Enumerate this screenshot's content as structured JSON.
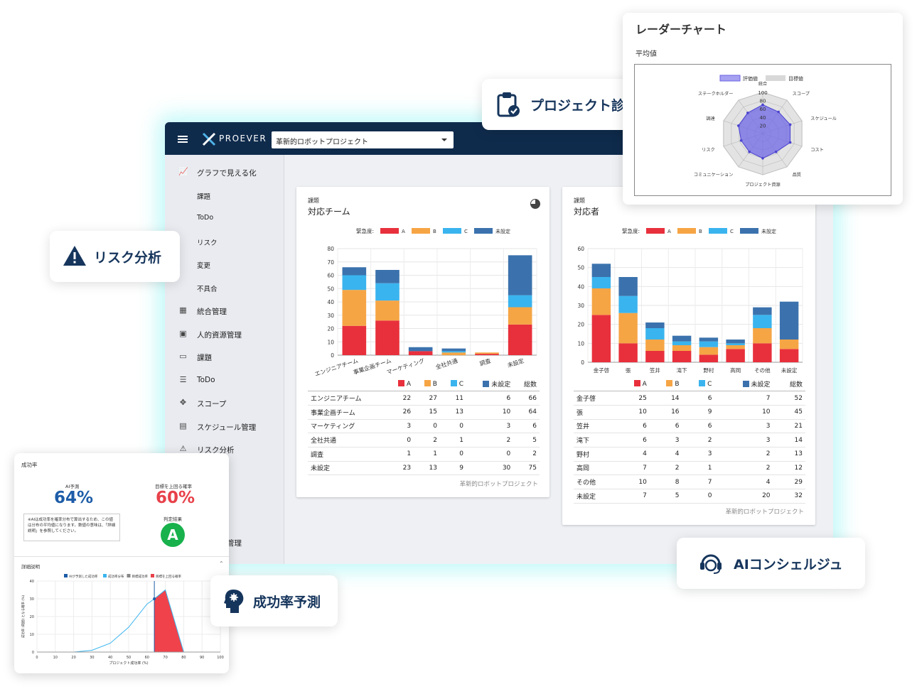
{
  "app": {
    "logo_text": "PROEVER",
    "project_select": "革新的ロボットプロジェクト"
  },
  "sidebar": {
    "items": [
      {
        "label": "グラフで見える化",
        "icon": "chart-icon",
        "sub": false
      },
      {
        "label": "課題",
        "icon": "",
        "sub": true
      },
      {
        "label": "ToDo",
        "icon": "",
        "sub": true
      },
      {
        "label": "リスク",
        "icon": "",
        "sub": true
      },
      {
        "label": "変更",
        "icon": "",
        "sub": true
      },
      {
        "label": "不具合",
        "icon": "",
        "sub": true
      },
      {
        "label": "統合管理",
        "icon": "building-icon",
        "sub": false
      },
      {
        "label": "人的資源管理",
        "icon": "person-badge-icon",
        "sub": false
      },
      {
        "label": "課題",
        "icon": "inbox-icon",
        "sub": false
      },
      {
        "label": "ToDo",
        "icon": "list-icon",
        "sub": false
      },
      {
        "label": "スコープ",
        "icon": "move-icon",
        "sub": false
      },
      {
        "label": "スケジュール管理",
        "icon": "calendar-icon",
        "sub": false
      },
      {
        "label": "リスク分析",
        "icon": "warning-icon",
        "sub": false
      },
      {
        "label": "理",
        "icon": "",
        "sub": false
      },
      {
        "label": "ホルダー管理",
        "icon": "",
        "sub": false
      }
    ]
  },
  "team_card": {
    "category": "課題",
    "title": "対応チーム",
    "legend_prefix": "緊急度:",
    "footer": "革新的ロボットプロジェクト",
    "table_headers": [
      "A",
      "B",
      "C",
      "未設定",
      "総数"
    ],
    "rows": [
      {
        "name": "エンジニアチーム",
        "values": [
          22,
          27,
          11,
          6
        ],
        "total": 66
      },
      {
        "name": "事業企画チーム",
        "values": [
          26,
          15,
          13,
          10
        ],
        "total": 64
      },
      {
        "name": "マーケティング",
        "values": [
          3,
          0,
          0,
          3
        ],
        "total": 6
      },
      {
        "name": "全社共通",
        "values": [
          0,
          2,
          1,
          2
        ],
        "total": 5
      },
      {
        "name": "調査",
        "values": [
          1,
          1,
          0,
          0
        ],
        "total": 2
      },
      {
        "name": "未設定",
        "values": [
          23,
          13,
          9,
          30
        ],
        "total": 75
      }
    ]
  },
  "person_card": {
    "category": "課題",
    "title": "対応者",
    "legend_prefix": "緊急度:",
    "footer": "革新的ロボットプロジェクト",
    "table_headers": [
      "A",
      "B",
      "C",
      "未設定",
      "総数"
    ],
    "rows": [
      {
        "name": "金子啓",
        "values": [
          25,
          14,
          6,
          7
        ],
        "total": 52
      },
      {
        "name": "張",
        "values": [
          10,
          16,
          9,
          10
        ],
        "total": 45
      },
      {
        "name": "笠井",
        "values": [
          6,
          6,
          6,
          3
        ],
        "total": 21
      },
      {
        "name": "滝下",
        "values": [
          6,
          3,
          2,
          3
        ],
        "total": 14
      },
      {
        "name": "野村",
        "values": [
          4,
          4,
          3,
          2
        ],
        "total": 13
      },
      {
        "name": "高岡",
        "values": [
          7,
          2,
          1,
          2
        ],
        "total": 12
      },
      {
        "name": "その他",
        "values": [
          10,
          8,
          7,
          4
        ],
        "total": 29
      },
      {
        "name": "未設定",
        "values": [
          7,
          5,
          0,
          20
        ],
        "total": 32
      }
    ]
  },
  "chart_data": [
    {
      "type": "bar",
      "stacked": true,
      "title": "対応チーム",
      "categories": [
        "エンジニアチーム",
        "事業企画チーム",
        "マーケティング",
        "全社共通",
        "調査",
        "未設定"
      ],
      "series": [
        {
          "name": "A",
          "values": [
            22,
            26,
            3,
            0,
            1,
            23
          ]
        },
        {
          "name": "B",
          "values": [
            27,
            15,
            0,
            2,
            1,
            13
          ]
        },
        {
          "name": "C",
          "values": [
            11,
            13,
            0,
            1,
            0,
            9
          ]
        },
        {
          "name": "未設定",
          "values": [
            6,
            10,
            3,
            2,
            0,
            30
          ]
        }
      ],
      "yticks": [
        0,
        10,
        20,
        30,
        40,
        50,
        60,
        70,
        80
      ],
      "ylim": [
        0,
        80
      ],
      "legend": "top",
      "grid": true
    },
    {
      "type": "bar",
      "stacked": true,
      "title": "対応者",
      "categories": [
        "金子啓",
        "張",
        "笠井",
        "滝下",
        "野村",
        "高岡",
        "その他",
        "未設定"
      ],
      "series": [
        {
          "name": "A",
          "values": [
            25,
            10,
            6,
            6,
            4,
            7,
            10,
            7
          ]
        },
        {
          "name": "B",
          "values": [
            14,
            16,
            6,
            3,
            4,
            2,
            8,
            5
          ]
        },
        {
          "name": "C",
          "values": [
            6,
            9,
            6,
            2,
            3,
            1,
            7,
            0
          ]
        },
        {
          "name": "未設定",
          "values": [
            7,
            10,
            3,
            3,
            2,
            2,
            4,
            20
          ]
        }
      ],
      "yticks": [
        0,
        10,
        20,
        30,
        40,
        50,
        60
      ],
      "ylim": [
        0,
        60
      ],
      "legend": "top",
      "grid": true
    },
    {
      "type": "radar",
      "title": "レーダーチャート",
      "subtitle": "平均値",
      "axes": [
        "統合",
        "スコープ",
        "スケジュール",
        "コスト",
        "品質",
        "プロジェクト資源",
        "コミュニケーション",
        "リスク",
        "調達",
        "ステークホルダー"
      ],
      "series": [
        {
          "name": "評価値",
          "values": [
            70,
            65,
            70,
            70,
            55,
            60,
            55,
            55,
            62,
            62
          ]
        },
        {
          "name": "目標値",
          "values": [
            100,
            100,
            100,
            100,
            100,
            100,
            100,
            100,
            100,
            100
          ]
        }
      ],
      "rticks": [
        20,
        40,
        60,
        80,
        100
      ],
      "rlim": [
        0,
        100
      ],
      "legend": "top"
    },
    {
      "type": "area",
      "title": "詳細説明",
      "xlabel": "プロジェクト成功率 (%)",
      "ylabel": "成功率 (範囲) となる確率 (%)",
      "x": [
        0,
        10,
        20,
        30,
        40,
        50,
        60,
        64,
        70,
        80
      ],
      "y": [
        0,
        0,
        0,
        1,
        5,
        14,
        27,
        30,
        35,
        0
      ],
      "highlight_from_x": 64,
      "xticks": [
        0,
        10,
        20,
        30,
        40,
        50,
        60,
        70,
        80,
        90,
        100
      ],
      "yticks": [
        0,
        10,
        20,
        30,
        40
      ],
      "xlim": [
        0,
        100
      ],
      "ylim": [
        0,
        40
      ],
      "legend_items": [
        "AIが予測した成功率",
        "成功率分布",
        "目標成功率",
        "目標を上回る確率"
      ],
      "grid": true
    }
  ],
  "colors": {
    "A": "#e8303c",
    "B": "#f6a545",
    "C": "#3ab4ee",
    "unset": "#3b72ad",
    "radar_value": "#6b63e6",
    "radar_target": "#d8d8d8",
    "navy": "#16355c",
    "success_blue": "#1d5ca8",
    "success_red": "#e8414a",
    "grade_green": "#18b14c"
  },
  "callouts": {
    "project_diag": "プロジェクト診断",
    "risk": "リスク分析",
    "success": "成功率予測",
    "concierge": "AIコンシェルジュ"
  },
  "success_card": {
    "title": "成功率",
    "ai_label": "AI予測",
    "ai_value": "64%",
    "target_label": "目標を上回る確率",
    "target_value": "60%",
    "note": "※AIは成功率を確率分布で算出するため、この値は分布の平均値になります。数値の意味は、「詳細説明」を参照してください。",
    "judge_label": "判定結果",
    "grade": "A",
    "detail_label": "詳細説明"
  }
}
